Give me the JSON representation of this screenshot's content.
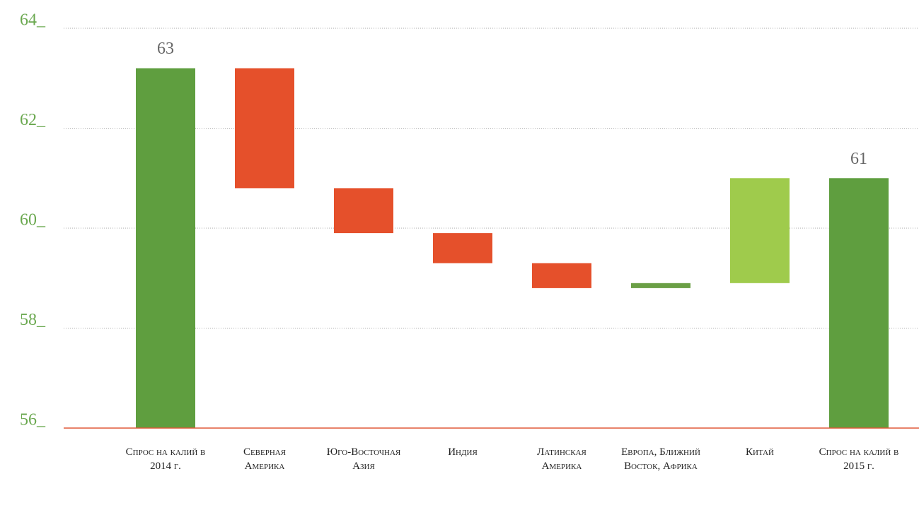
{
  "chart_data": {
    "type": "waterfall",
    "categories": [
      "Спрос на калий в 2014 г.",
      "Северная Америка",
      "Юго-Восточная Азия",
      "Индия",
      "Латинская Америка",
      "Европа, Ближний Восток, Африка",
      "Китай",
      "Спрос на калий в 2015 г."
    ],
    "values": [
      63.2,
      -2.4,
      -0.9,
      -0.6,
      -0.5,
      0.1,
      2.1,
      61.0
    ],
    "value_labels": [
      "63",
      null,
      null,
      null,
      null,
      null,
      null,
      "61"
    ],
    "totals": [
      true,
      false,
      false,
      false,
      false,
      false,
      false,
      true
    ],
    "colors": [
      "#5f9e3f",
      "#e5502b",
      "#e5502b",
      "#e5502b",
      "#e5502b",
      "#6a9f45",
      "#9fcb4c",
      "#5f9e3f"
    ],
    "ylim": [
      56,
      64
    ],
    "yticks": [
      {
        "value": 56,
        "label": "56_"
      },
      {
        "value": 58,
        "label": "58_"
      },
      {
        "value": 60,
        "label": "60_"
      },
      {
        "value": 62,
        "label": "62_"
      },
      {
        "value": 64,
        "label": "64_"
      }
    ],
    "grid": true
  }
}
